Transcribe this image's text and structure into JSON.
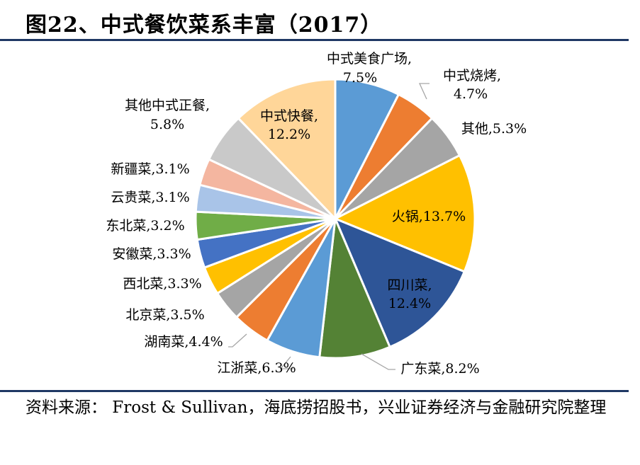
{
  "title": "图22、中式餐饮菜系丰富（2017）",
  "source": "资料来源： Frost & Sullivan，海底捞招股书，兴业证券经济与金融研究院整理",
  "chart_data": {
    "type": "pie",
    "title": "图22、中式餐饮菜系丰富（2017）",
    "start": "12 o'clock, clockwise",
    "slices": [
      {
        "name": "中式美食广场",
        "value": 7.5,
        "label": "7.5%",
        "color": "#5b9bd5"
      },
      {
        "name": "中式烧烤",
        "value": 4.7,
        "label": "4.7%",
        "color": "#ed7d31"
      },
      {
        "name": "其他",
        "value": 5.3,
        "label": "5.3%",
        "color": "#a5a5a5"
      },
      {
        "name": "火锅",
        "value": 13.7,
        "label": "13.7%",
        "color": "#ffc000"
      },
      {
        "name": "四川菜",
        "value": 12.4,
        "label": "12.4%",
        "color": "#2e5597"
      },
      {
        "name": "广东菜",
        "value": 8.2,
        "label": "8.2%",
        "color": "#548235"
      },
      {
        "name": "江浙菜",
        "value": 6.3,
        "label": "6.3%",
        "color": "#5b9bd5"
      },
      {
        "name": "湖南菜",
        "value": 4.4,
        "label": "4.4%",
        "color": "#ed7d31"
      },
      {
        "name": "北京菜",
        "value": 3.5,
        "label": "3.5%",
        "color": "#a5a5a5"
      },
      {
        "name": "西北菜",
        "value": 3.3,
        "label": "3.3%",
        "color": "#ffc000"
      },
      {
        "name": "安徽菜",
        "value": 3.3,
        "label": "3.3%",
        "color": "#4472c4"
      },
      {
        "name": "东北菜",
        "value": 3.2,
        "label": "3.2%",
        "color": "#70ad47"
      },
      {
        "name": "云贵菜",
        "value": 3.1,
        "label": "3.1%",
        "color": "#a9c4e8"
      },
      {
        "name": "新疆菜",
        "value": 3.1,
        "label": "3.1%",
        "color": "#f4b6a0"
      },
      {
        "name": "其他中式正餐",
        "value": 5.8,
        "label": "5.8%",
        "color": "#c9c9c9"
      },
      {
        "name": "中式快餐",
        "value": 12.2,
        "label": "12.2%",
        "color": "#ffd699"
      }
    ]
  }
}
